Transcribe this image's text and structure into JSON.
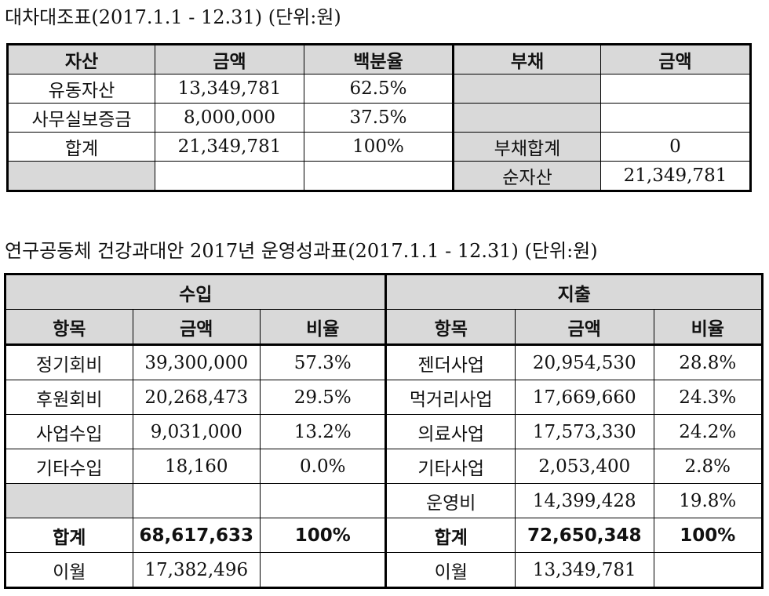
{
  "balance_sheet": {
    "title": "대차대조표(2017.1.1 - 12.31) (단위:원)",
    "headers": [
      "자산",
      "금액",
      "백분율",
      "부채",
      "금액"
    ],
    "rows": [
      [
        "유동자산",
        "13,349,781",
        "62.5%",
        "",
        ""
      ],
      [
        "사무실보증금",
        "8,000,000",
        "37.5%",
        "",
        ""
      ],
      [
        "합계",
        "21,349,781",
        "100%",
        "부채합계",
        "0"
      ],
      [
        "",
        "",
        "",
        "순자산",
        "21,349,781"
      ]
    ]
  },
  "operations": {
    "title": "연구공동체 건강과대안 2017년 운영성과표(2017.1.1 - 12.31) (단위:원)",
    "income_header": "수입",
    "expense_header": "지출",
    "sub_headers": [
      "항목",
      "금액",
      "비율",
      "항목",
      "금액",
      "비율"
    ],
    "rows": [
      [
        "정기회비",
        "39,300,000",
        "57.3%",
        "젠더사업",
        "20,954,530",
        "28.8%"
      ],
      [
        "후원회비",
        "20,268,473",
        "29.5%",
        "먹거리사업",
        "17,669,660",
        "24.3%"
      ],
      [
        "사업수입",
        "9,031,000",
        "13.2%",
        "의료사업",
        "17,573,330",
        "24.2%"
      ],
      [
        "기타수입",
        "18,160",
        "0.0%",
        "기타사업",
        "2,053,400",
        "2.8%"
      ],
      [
        "",
        "",
        "",
        "운영비",
        "14,399,428",
        "19.8%"
      ]
    ],
    "total": [
      "합계",
      "68,617,633",
      "100%",
      "합계",
      "72,650,348",
      "100%"
    ],
    "carryover": [
      "이월",
      "17,382,496",
      "",
      "이월",
      "13,349,781",
      ""
    ]
  }
}
